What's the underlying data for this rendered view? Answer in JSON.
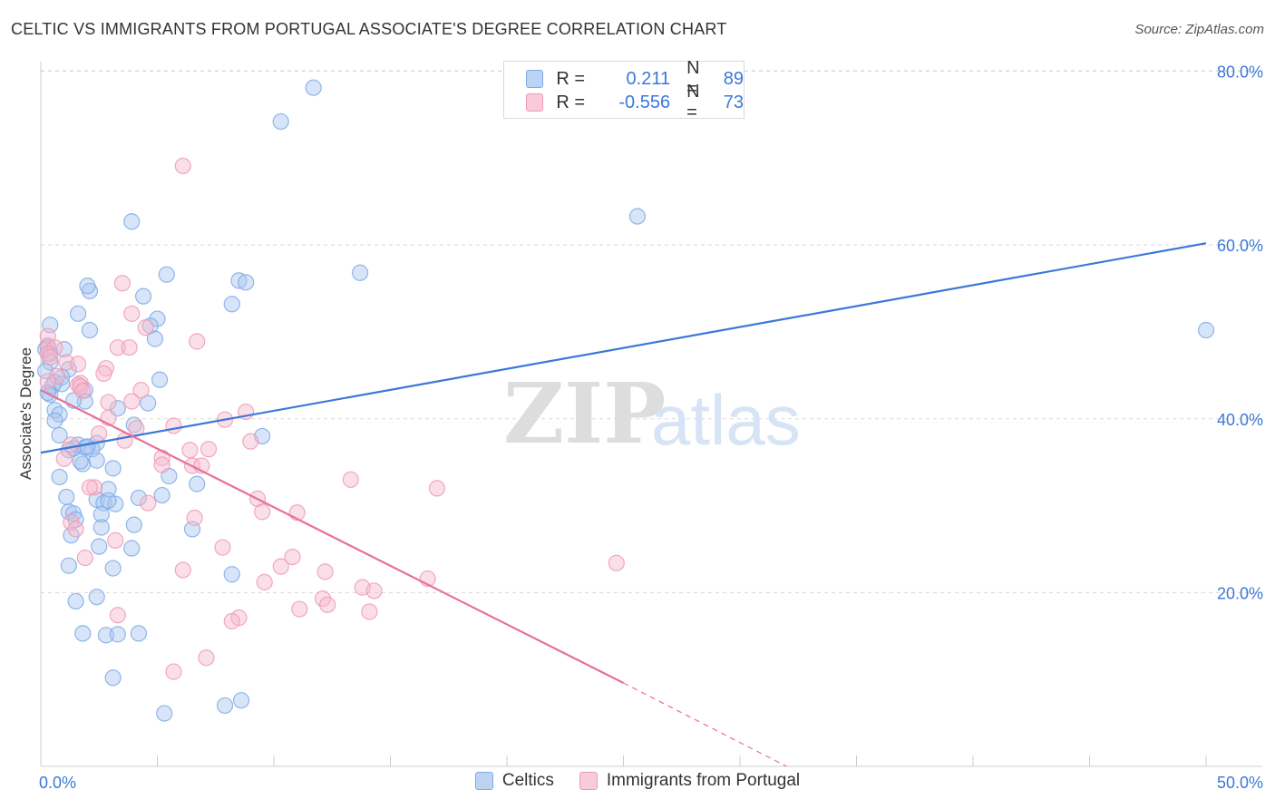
{
  "title": "CELTIC VS IMMIGRANTS FROM PORTUGAL ASSOCIATE'S DEGREE CORRELATION CHART",
  "source": "Source: ZipAtlas.com",
  "watermark": {
    "zip": "ZIP",
    "atlas": "atlas"
  },
  "legend_top": [
    {
      "r_label": "R =",
      "r_value": "0.211",
      "n_label": "N =",
      "n_value": "89"
    },
    {
      "r_label": "R =",
      "r_value": "-0.556",
      "n_label": "N =",
      "n_value": "73"
    }
  ],
  "legend_bottom": [
    "Celtics",
    "Immigrants from Portugal"
  ],
  "colors": {
    "blue": "#3b78d8",
    "blue_fill": "#a9c6ef",
    "pink": "#e8709a",
    "pink_fill": "#f6b7cb",
    "grid": "#d9d9d9",
    "axis_label": "#3b78d8"
  },
  "chart_data": {
    "type": "scatter",
    "title": "CELTIC VS IMMIGRANTS FROM PORTUGAL ASSOCIATE'S DEGREE CORRELATION CHART",
    "xlabel": "",
    "ylabel": "Associate's Degree",
    "xlim": [
      0,
      50
    ],
    "ylim": [
      0,
      80
    ],
    "x_tick_labels": [
      "0.0%",
      "50.0%"
    ],
    "y_ticks": [
      20,
      40,
      60,
      80
    ],
    "y_tick_labels": [
      "20.0%",
      "40.0%",
      "60.0%",
      "80.0%"
    ],
    "grid": true,
    "series": [
      {
        "name": "Celtics",
        "color": "#3b78d8",
        "R": 0.211,
        "N": 89,
        "trend": {
          "x": [
            0,
            50
          ],
          "y": [
            36.1,
            60.2
          ],
          "dashed_from": null
        },
        "points": [
          [
            11.7,
            78.1
          ],
          [
            10.3,
            74.2
          ],
          [
            25.6,
            63.3
          ],
          [
            3.9,
            62.7
          ],
          [
            13.7,
            56.8
          ],
          [
            5.4,
            56.6
          ],
          [
            8.5,
            55.9
          ],
          [
            8.8,
            55.7
          ],
          [
            2.1,
            54.7
          ],
          [
            2.0,
            55.3
          ],
          [
            4.4,
            54.1
          ],
          [
            8.2,
            53.2
          ],
          [
            1.6,
            52.1
          ],
          [
            5.0,
            51.5
          ],
          [
            4.7,
            50.7
          ],
          [
            0.4,
            50.8
          ],
          [
            2.1,
            50.2
          ],
          [
            50.0,
            50.2
          ],
          [
            4.9,
            49.2
          ],
          [
            0.3,
            48.4
          ],
          [
            0.2,
            48.0
          ],
          [
            1.0,
            48.0
          ],
          [
            0.4,
            47.5
          ],
          [
            0.4,
            46.5
          ],
          [
            0.2,
            45.5
          ],
          [
            1.2,
            45.7
          ],
          [
            0.9,
            44.8
          ],
          [
            5.1,
            44.5
          ],
          [
            0.6,
            44.2
          ],
          [
            0.5,
            43.8
          ],
          [
            0.9,
            44.0
          ],
          [
            1.9,
            43.3
          ],
          [
            0.4,
            42.8
          ],
          [
            1.9,
            42.0
          ],
          [
            1.4,
            42.1
          ],
          [
            4.6,
            41.8
          ],
          [
            3.3,
            41.2
          ],
          [
            0.6,
            41.0
          ],
          [
            0.8,
            40.5
          ],
          [
            0.6,
            39.8
          ],
          [
            4.0,
            39.3
          ],
          [
            9.5,
            38.0
          ],
          [
            0.8,
            38.1
          ],
          [
            2.4,
            37.2
          ],
          [
            1.6,
            37.0
          ],
          [
            1.4,
            36.6
          ],
          [
            1.2,
            36.4
          ],
          [
            2.2,
            36.5
          ],
          [
            1.9,
            36.7
          ],
          [
            2.4,
            35.2
          ],
          [
            1.8,
            34.8
          ],
          [
            1.7,
            35.1
          ],
          [
            3.1,
            34.3
          ],
          [
            5.5,
            33.4
          ],
          [
            0.8,
            33.3
          ],
          [
            6.7,
            32.5
          ],
          [
            2.9,
            31.9
          ],
          [
            5.2,
            31.2
          ],
          [
            1.1,
            31.0
          ],
          [
            4.2,
            30.9
          ],
          [
            2.4,
            30.7
          ],
          [
            2.7,
            30.3
          ],
          [
            3.2,
            30.2
          ],
          [
            2.9,
            30.6
          ],
          [
            1.2,
            29.3
          ],
          [
            1.4,
            29.1
          ],
          [
            2.6,
            29.0
          ],
          [
            1.5,
            28.4
          ],
          [
            2.6,
            27.5
          ],
          [
            4.0,
            27.8
          ],
          [
            6.5,
            27.3
          ],
          [
            1.3,
            26.6
          ],
          [
            2.5,
            25.3
          ],
          [
            3.9,
            25.1
          ],
          [
            3.1,
            22.8
          ],
          [
            1.2,
            23.1
          ],
          [
            8.2,
            22.1
          ],
          [
            2.4,
            19.5
          ],
          [
            1.5,
            19.0
          ],
          [
            1.8,
            15.3
          ],
          [
            2.8,
            15.1
          ],
          [
            3.3,
            15.2
          ],
          [
            4.2,
            15.3
          ],
          [
            3.1,
            10.2
          ],
          [
            7.9,
            7.0
          ],
          [
            8.6,
            7.6
          ],
          [
            5.3,
            6.1
          ],
          [
            0.3,
            43.0
          ],
          [
            2.0,
            36.8
          ]
        ]
      },
      {
        "name": "Immigrants from Portugal",
        "color": "#e8709a",
        "R": -0.556,
        "N": 73,
        "trend": {
          "x": [
            0,
            25.0
          ],
          "y": [
            43.3,
            9.6
          ],
          "dashed_to": {
            "x": 32,
            "y": 0
          }
        },
        "points": [
          [
            6.1,
            69.1
          ],
          [
            3.5,
            55.6
          ],
          [
            3.9,
            52.1
          ],
          [
            4.5,
            50.5
          ],
          [
            0.3,
            49.5
          ],
          [
            6.7,
            48.9
          ],
          [
            3.3,
            48.2
          ],
          [
            3.8,
            48.2
          ],
          [
            0.3,
            48.2
          ],
          [
            0.6,
            48.2
          ],
          [
            0.3,
            47.5
          ],
          [
            0.4,
            47.1
          ],
          [
            1.1,
            46.5
          ],
          [
            1.6,
            46.3
          ],
          [
            2.8,
            45.8
          ],
          [
            2.7,
            45.2
          ],
          [
            0.7,
            44.9
          ],
          [
            0.3,
            44.3
          ],
          [
            1.7,
            44.1
          ],
          [
            1.6,
            43.9
          ],
          [
            4.3,
            43.3
          ],
          [
            1.7,
            43.7
          ],
          [
            1.8,
            43.2
          ],
          [
            3.9,
            42.0
          ],
          [
            2.9,
            41.9
          ],
          [
            8.8,
            40.8
          ],
          [
            7.9,
            39.9
          ],
          [
            2.9,
            40.1
          ],
          [
            5.7,
            39.2
          ],
          [
            4.1,
            38.9
          ],
          [
            2.5,
            38.3
          ],
          [
            3.6,
            37.5
          ],
          [
            9.0,
            37.4
          ],
          [
            1.3,
            37.0
          ],
          [
            7.2,
            36.5
          ],
          [
            6.4,
            36.4
          ],
          [
            1.0,
            35.4
          ],
          [
            5.2,
            35.5
          ],
          [
            5.2,
            34.7
          ],
          [
            6.5,
            34.6
          ],
          [
            6.9,
            34.6
          ],
          [
            13.3,
            33.0
          ],
          [
            17.0,
            32.0
          ],
          [
            2.3,
            32.1
          ],
          [
            2.1,
            32.1
          ],
          [
            9.3,
            30.8
          ],
          [
            4.6,
            30.3
          ],
          [
            9.5,
            29.3
          ],
          [
            11.0,
            29.2
          ],
          [
            6.6,
            28.6
          ],
          [
            1.3,
            28.1
          ],
          [
            1.5,
            27.3
          ],
          [
            3.2,
            26.0
          ],
          [
            7.8,
            25.2
          ],
          [
            1.9,
            24.0
          ],
          [
            10.8,
            24.1
          ],
          [
            10.3,
            23.0
          ],
          [
            24.7,
            23.4
          ],
          [
            12.2,
            22.4
          ],
          [
            16.6,
            21.6
          ],
          [
            12.1,
            19.3
          ],
          [
            9.6,
            21.2
          ],
          [
            13.8,
            20.6
          ],
          [
            14.3,
            20.2
          ],
          [
            11.1,
            18.1
          ],
          [
            12.3,
            18.6
          ],
          [
            14.1,
            17.8
          ],
          [
            8.5,
            17.1
          ],
          [
            8.2,
            16.7
          ],
          [
            3.3,
            17.4
          ],
          [
            7.1,
            12.5
          ],
          [
            5.7,
            10.9
          ],
          [
            6.1,
            22.6
          ]
        ]
      }
    ]
  }
}
